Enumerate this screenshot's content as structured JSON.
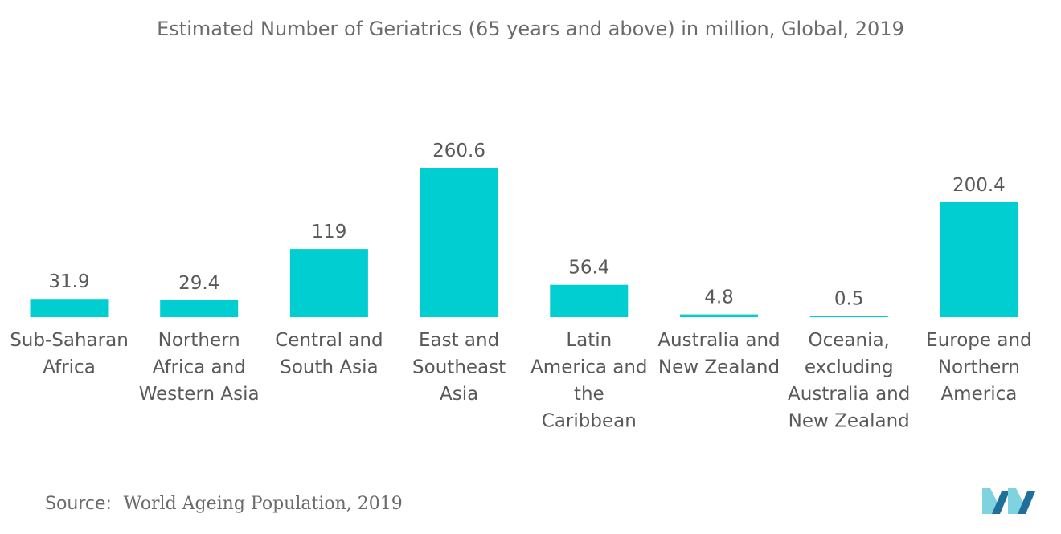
{
  "title": "Estimated Number of Geriatrics (65 years and above) in million, Global, 2019",
  "source": {
    "label": "Source:",
    "text": "World Ageing Population, 2019"
  },
  "colors": {
    "bar": "#00CED1",
    "text": "#595959",
    "logo_light": "#7fd3e0",
    "logo_dark": "#1f6f9b"
  },
  "icons": {
    "logo": "mordor-logo-icon"
  },
  "chart_data": {
    "type": "bar",
    "title": "Estimated Number of Geriatrics (65 years and above) in million, Global, 2019",
    "categories": [
      [
        "Sub-Saharan",
        "Africa"
      ],
      [
        "Northern",
        "Africa and",
        "Western Asia"
      ],
      [
        "Central and",
        "South Asia"
      ],
      [
        "East and",
        "Southeast",
        "Asia"
      ],
      [
        "Latin",
        "America and",
        "the",
        "Caribbean"
      ],
      [
        "Australia and",
        "New Zealand"
      ],
      [
        "Oceania,",
        "excluding",
        "Australia and",
        "New Zealand"
      ],
      [
        "Europe and",
        "Northern",
        "America"
      ]
    ],
    "values": [
      31.9,
      29.4,
      119,
      260.6,
      56.4,
      4.8,
      0.5,
      200.4
    ],
    "value_labels": [
      "31.9",
      "29.4",
      "119",
      "260.6",
      "56.4",
      "4.8",
      "0.5",
      "200.4"
    ],
    "ylim": [
      0,
      260.6
    ],
    "grid": false,
    "legend": "none",
    "xlabel": "",
    "ylabel": ""
  }
}
